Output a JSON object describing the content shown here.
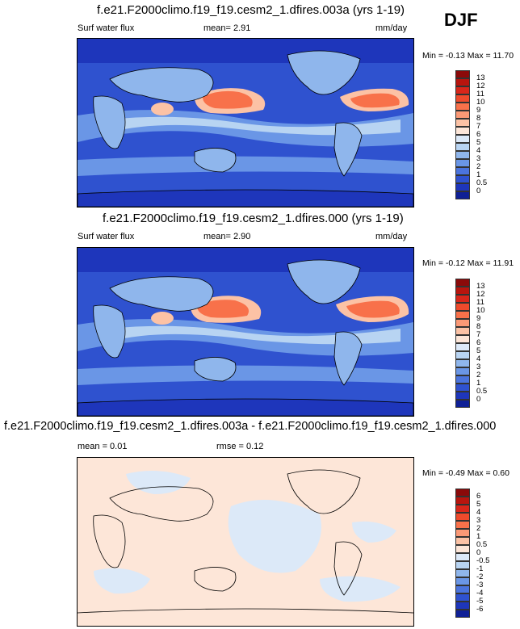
{
  "season": "DJF",
  "panels": [
    {
      "title": "f.e21.F2000climo.f19_f19.cesm2_1.dfires.003a (yrs 1-19)",
      "left_label": "Surf water flux",
      "mid_label": "mean=   2.91",
      "right_label": "mm/day",
      "minmax": "Min = -0.13 Max = 11.70",
      "colorbar": {
        "labels": [
          "13",
          "12",
          "11",
          "10",
          "9",
          "8",
          "7",
          "6",
          "5",
          "4",
          "3",
          "2",
          "1",
          "0.5",
          "0"
        ],
        "colors": [
          "#8b0a0a",
          "#b8150e",
          "#d8261a",
          "#ee4a2c",
          "#f8714a",
          "#fb9976",
          "#fcc2a5",
          "#fde6d8",
          "#dce9f8",
          "#b8d4f2",
          "#8fb6ec",
          "#6a96e6",
          "#4b74dd",
          "#2f52cf",
          "#1e36bb",
          "#0f2096"
        ]
      }
    },
    {
      "title": "f.e21.F2000climo.f19_f19.cesm2_1.dfires.000 (yrs 1-19)",
      "left_label": "Surf water flux",
      "mid_label": "mean=   2.90",
      "right_label": "mm/day",
      "minmax": "Min = -0.12 Max = 11.91",
      "colorbar": {
        "labels": [
          "13",
          "12",
          "11",
          "10",
          "9",
          "8",
          "7",
          "6",
          "5",
          "4",
          "3",
          "2",
          "1",
          "0.5",
          "0"
        ],
        "colors": [
          "#8b0a0a",
          "#b8150e",
          "#d8261a",
          "#ee4a2c",
          "#f8714a",
          "#fb9976",
          "#fcc2a5",
          "#fde6d8",
          "#dce9f8",
          "#b8d4f2",
          "#8fb6ec",
          "#6a96e6",
          "#4b74dd",
          "#2f52cf",
          "#1e36bb",
          "#0f2096"
        ]
      }
    },
    {
      "title": "f.e21.F2000climo.f19_f19.cesm2_1.dfires.003a - f.e21.F2000climo.f19_f19.cesm2_1.dfires.000",
      "left_label": "mean =   0.01",
      "mid_label": "rmse =   0.12",
      "right_label": "",
      "minmax": "Min = -0.49 Max =   0.60",
      "colorbar": {
        "labels": [
          "6",
          "5",
          "4",
          "3",
          "2",
          "1",
          "0.5",
          "0",
          "-0.5",
          "-1",
          "-2",
          "-3",
          "-4",
          "-5",
          "-6"
        ],
        "colors": [
          "#8b0a0a",
          "#b8150e",
          "#d8261a",
          "#ee4a2c",
          "#f8714a",
          "#fb9976",
          "#fcc2a5",
          "#fde6d8",
          "#dce9f8",
          "#b8d4f2",
          "#8fb6ec",
          "#6a96e6",
          "#4b74dd",
          "#2f52cf",
          "#1e36bb",
          "#0f2096"
        ]
      }
    }
  ],
  "chart_data": {
    "type": "heatmap",
    "series": [
      {
        "name": "f.e21.F2000climo.f19_f19.cesm2_1.dfires.003a (yrs 1-19)",
        "mean": 2.91,
        "min": -0.13,
        "max": 11.7
      },
      {
        "name": "f.e21.F2000climo.f19_f19.cesm2_1.dfires.000 (yrs 1-19)",
        "mean": 2.9,
        "min": -0.12,
        "max": 11.91
      },
      {
        "name": "f.e21.F2000climo.f19_f19.cesm2_1.dfires.003a - f.e21.F2000climo.f19_f19.cesm2_1.dfires.000",
        "mean": 0.01,
        "rmse": 0.12,
        "min": -0.49,
        "max": 0.6
      }
    ],
    "levels_abs": [
      0,
      0.5,
      1,
      2,
      3,
      4,
      5,
      6,
      7,
      8,
      9,
      10,
      11,
      12,
      13
    ],
    "levels_diff": [
      -6,
      -5,
      -4,
      -3,
      -2,
      -1,
      -0.5,
      0,
      0.5,
      1,
      2,
      3,
      4,
      5,
      6
    ]
  }
}
